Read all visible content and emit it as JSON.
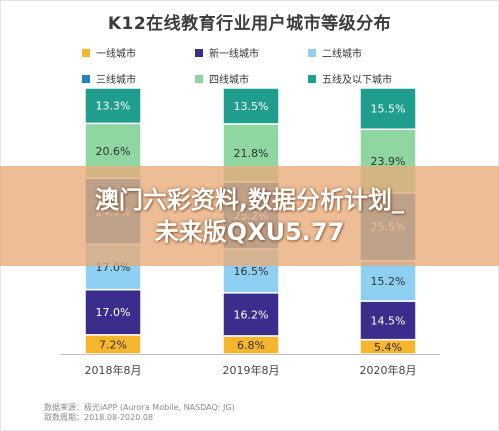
{
  "chart_data": {
    "type": "bar",
    "stacked": true,
    "percent_stacked": true,
    "title": "K12在线教育行业用户城市等级分布",
    "categories": [
      "2018年8月",
      "2019年8月",
      "2020年8月"
    ],
    "series": [
      {
        "name": "一线城市",
        "color": "#f5b62e",
        "values": [
          7.2,
          6.8,
          5.4
        ]
      },
      {
        "name": "新一线城市",
        "color": "#3b2d8c",
        "values": [
          17.0,
          16.2,
          14.5
        ]
      },
      {
        "name": "二线城市",
        "color": "#8ed0f2",
        "values": [
          17.0,
          16.5,
          15.2
        ]
      },
      {
        "name": "三线城市",
        "color": "#2a7fc4",
        "values": [
          24.9,
          25.2,
          25.5
        ]
      },
      {
        "name": "四线城市",
        "color": "#8fd6a3",
        "values": [
          20.6,
          21.8,
          23.9
        ]
      },
      {
        "name": "五线及以下城市",
        "color": "#1f9e8e",
        "values": [
          13.3,
          13.5,
          15.5
        ]
      }
    ],
    "ylim": [
      0,
      100
    ],
    "grid": false,
    "legend_position": "top"
  },
  "source": {
    "line1": "数据来源：极光iAPP (Aurora Mobile, NASDAQ: JG)",
    "line2": "取数周期：2018.08-2020.08"
  },
  "banner": {
    "line1": "澳门六彩资料,数据分析计划_",
    "line2": "未来版QXU5.77"
  }
}
